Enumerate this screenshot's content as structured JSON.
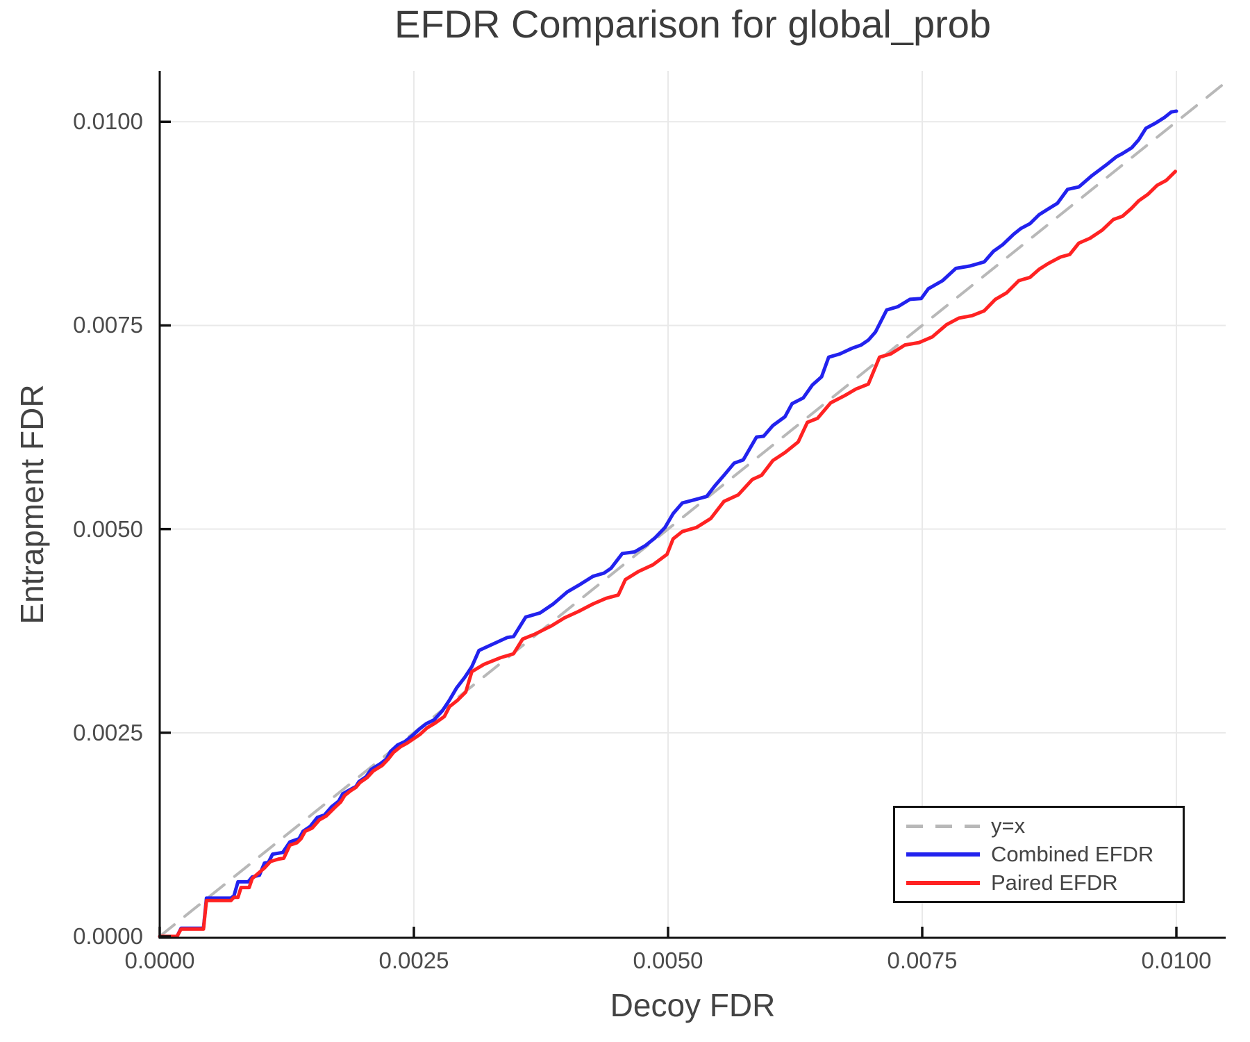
{
  "colors": {
    "background": "#ffffff",
    "grid": "#e9e9e9",
    "spine": "#111111",
    "tick_mark": "#111111",
    "title_text": "#3c3c3c",
    "axis_label_text": "#434343",
    "tick_label_text": "#4b4b4b",
    "legend_border": "#141414",
    "legend_text": "#444444",
    "identity_line": "#b8b8b8",
    "combined_line": "#2222ee",
    "paired_line": "#ff2222"
  },
  "chart_data": {
    "type": "line",
    "title": "EFDR Comparison for global_prob",
    "xlabel": "Decoy FDR",
    "ylabel": "Entrapment FDR",
    "xlim": [
      0,
      0.010485
    ],
    "ylim": [
      0,
      0.010625
    ],
    "grid": true,
    "legend_position": "lower right",
    "xticks": {
      "values": [
        0,
        0.0025,
        0.005,
        0.0075,
        0.01
      ],
      "labels": [
        "0.0000",
        "0.0025",
        "0.0050",
        "0.0075",
        "0.0100"
      ]
    },
    "yticks": {
      "values": [
        0,
        0.0025,
        0.005,
        0.0075,
        0.01
      ],
      "labels": [
        "0.0000",
        "0.0025",
        "0.0050",
        "0.0075",
        "0.0100"
      ]
    },
    "series": [
      {
        "name": "y=x",
        "style": "dashed",
        "color": "#b8b8b8",
        "width": 4,
        "points": [
          [
            0,
            0
          ],
          [
            0.010485,
            0.010485
          ]
        ]
      },
      {
        "name": "Combined EFDR",
        "style": "solid",
        "color": "#2222ee",
        "width": 5,
        "points": [
          [
            0,
            0
          ],
          [
            0.00017,
            0
          ],
          [
            0.00021,
            0.0001
          ],
          [
            0.00043,
            0.0001
          ],
          [
            0.00046,
            0.00047
          ],
          [
            0.0007,
            0.00047
          ],
          [
            0.00073,
            0.0005
          ],
          [
            0.00077,
            0.00067
          ],
          [
            0.00087,
            0.00067
          ],
          [
            0.00091,
            0.00073
          ],
          [
            0.00098,
            0.00075
          ],
          [
            0.00103,
            0.0009
          ],
          [
            0.00107,
            0.00091
          ],
          [
            0.00111,
            0.00101
          ],
          [
            0.00121,
            0.00103
          ],
          [
            0.00128,
            0.00116
          ],
          [
            0.00137,
            0.0012
          ],
          [
            0.00141,
            0.00129
          ],
          [
            0.00148,
            0.00135
          ],
          [
            0.00155,
            0.00146
          ],
          [
            0.00162,
            0.00149
          ],
          [
            0.00169,
            0.00159
          ],
          [
            0.00176,
            0.00166
          ],
          [
            0.0018,
            0.00175
          ],
          [
            0.00187,
            0.0018
          ],
          [
            0.00193,
            0.00184
          ],
          [
            0.00196,
            0.0019
          ],
          [
            0.00203,
            0.00196
          ],
          [
            0.00208,
            0.00205
          ],
          [
            0.00217,
            0.00212
          ],
          [
            0.00223,
            0.00218
          ],
          [
            0.00227,
            0.00227
          ],
          [
            0.00234,
            0.00235
          ],
          [
            0.00241,
            0.00239
          ],
          [
            0.00248,
            0.00246
          ],
          [
            0.00255,
            0.00254
          ],
          [
            0.00262,
            0.00261
          ],
          [
            0.0027,
            0.00266
          ],
          [
            0.00278,
            0.00277
          ],
          [
            0.00285,
            0.0029
          ],
          [
            0.00292,
            0.00305
          ],
          [
            0.003,
            0.00318
          ],
          [
            0.00307,
            0.00331
          ],
          [
            0.00314,
            0.00351
          ],
          [
            0.00328,
            0.00359
          ],
          [
            0.00342,
            0.00367
          ],
          [
            0.00348,
            0.00368
          ],
          [
            0.0036,
            0.00392
          ],
          [
            0.00374,
            0.00397
          ],
          [
            0.00387,
            0.00408
          ],
          [
            0.00401,
            0.00423
          ],
          [
            0.00412,
            0.00431
          ],
          [
            0.00426,
            0.00442
          ],
          [
            0.00437,
            0.00446
          ],
          [
            0.00444,
            0.00452
          ],
          [
            0.00455,
            0.0047
          ],
          [
            0.00467,
            0.00472
          ],
          [
            0.00478,
            0.0048
          ],
          [
            0.00487,
            0.00489
          ],
          [
            0.00497,
            0.00502
          ],
          [
            0.00505,
            0.00519
          ],
          [
            0.00514,
            0.00532
          ],
          [
            0.00526,
            0.00536
          ],
          [
            0.00538,
            0.0054
          ],
          [
            0.00546,
            0.00553
          ],
          [
            0.00555,
            0.00566
          ],
          [
            0.00565,
            0.00581
          ],
          [
            0.00574,
            0.00585
          ],
          [
            0.00587,
            0.00613
          ],
          [
            0.00594,
            0.00614
          ],
          [
            0.00603,
            0.00627
          ],
          [
            0.00615,
            0.00638
          ],
          [
            0.00622,
            0.00654
          ],
          [
            0.00633,
            0.00661
          ],
          [
            0.00642,
            0.00677
          ],
          [
            0.00651,
            0.00687
          ],
          [
            0.00658,
            0.00711
          ],
          [
            0.00669,
            0.00715
          ],
          [
            0.00681,
            0.00722
          ],
          [
            0.0069,
            0.00726
          ],
          [
            0.00697,
            0.00732
          ],
          [
            0.00704,
            0.00742
          ],
          [
            0.00715,
            0.00769
          ],
          [
            0.00726,
            0.00773
          ],
          [
            0.00738,
            0.00782
          ],
          [
            0.00749,
            0.00783
          ],
          [
            0.00756,
            0.00795
          ],
          [
            0.0077,
            0.00805
          ],
          [
            0.00783,
            0.0082
          ],
          [
            0.00797,
            0.00823
          ],
          [
            0.00811,
            0.00828
          ],
          [
            0.0082,
            0.00841
          ],
          [
            0.00829,
            0.00849
          ],
          [
            0.0084,
            0.00862
          ],
          [
            0.00847,
            0.00869
          ],
          [
            0.00856,
            0.00875
          ],
          [
            0.00865,
            0.00886
          ],
          [
            0.00874,
            0.00893
          ],
          [
            0.00883,
            0.009
          ],
          [
            0.00893,
            0.00917
          ],
          [
            0.00904,
            0.0092
          ],
          [
            0.00917,
            0.00934
          ],
          [
            0.00931,
            0.00947
          ],
          [
            0.00941,
            0.00957
          ],
          [
            0.00947,
            0.00961
          ],
          [
            0.00956,
            0.00968
          ],
          [
            0.00963,
            0.00978
          ],
          [
            0.0097,
            0.00992
          ],
          [
            0.00979,
            0.00998
          ],
          [
            0.00988,
            0.01005
          ],
          [
            0.00995,
            0.01012
          ],
          [
            0.01,
            0.01013
          ]
        ]
      },
      {
        "name": "Paired EFDR",
        "style": "solid",
        "color": "#ff2222",
        "width": 5,
        "points": [
          [
            0,
            0
          ],
          [
            0.00017,
            0
          ],
          [
            0.00021,
            9e-05
          ],
          [
            0.00043,
            9e-05
          ],
          [
            0.00046,
            0.00044
          ],
          [
            0.0007,
            0.00044
          ],
          [
            0.00073,
            0.00048
          ],
          [
            0.00077,
            0.00048
          ],
          [
            0.0008,
            0.0006
          ],
          [
            0.00088,
            0.0006
          ],
          [
            0.00091,
            0.00071
          ],
          [
            0.00103,
            0.00084
          ],
          [
            0.00109,
            0.00092
          ],
          [
            0.00117,
            0.00095
          ],
          [
            0.00122,
            0.00096
          ],
          [
            0.00128,
            0.00112
          ],
          [
            0.00135,
            0.00115
          ],
          [
            0.00139,
            0.0012
          ],
          [
            0.00143,
            0.00129
          ],
          [
            0.0015,
            0.00133
          ],
          [
            0.00157,
            0.00143
          ],
          [
            0.00164,
            0.00148
          ],
          [
            0.00172,
            0.00158
          ],
          [
            0.00178,
            0.00165
          ],
          [
            0.00182,
            0.00173
          ],
          [
            0.00188,
            0.00179
          ],
          [
            0.00193,
            0.00183
          ],
          [
            0.00197,
            0.00189
          ],
          [
            0.00204,
            0.00195
          ],
          [
            0.0021,
            0.00203
          ],
          [
            0.00219,
            0.0021
          ],
          [
            0.00225,
            0.00218
          ],
          [
            0.0023,
            0.00226
          ],
          [
            0.00237,
            0.00233
          ],
          [
            0.00243,
            0.00237
          ],
          [
            0.00249,
            0.00242
          ],
          [
            0.00256,
            0.00248
          ],
          [
            0.00263,
            0.00256
          ],
          [
            0.00271,
            0.00262
          ],
          [
            0.0028,
            0.0027
          ],
          [
            0.00285,
            0.00282
          ],
          [
            0.00293,
            0.0029
          ],
          [
            0.00301,
            0.003
          ],
          [
            0.00307,
            0.00325
          ],
          [
            0.00319,
            0.00334
          ],
          [
            0.00335,
            0.00342
          ],
          [
            0.00348,
            0.00347
          ],
          [
            0.00357,
            0.00365
          ],
          [
            0.00369,
            0.00371
          ],
          [
            0.00385,
            0.00381
          ],
          [
            0.00398,
            0.00391
          ],
          [
            0.00412,
            0.00399
          ],
          [
            0.00426,
            0.00408
          ],
          [
            0.00439,
            0.00415
          ],
          [
            0.00451,
            0.00419
          ],
          [
            0.00458,
            0.00438
          ],
          [
            0.00471,
            0.00448
          ],
          [
            0.00485,
            0.00456
          ],
          [
            0.00499,
            0.00469
          ],
          [
            0.00505,
            0.00488
          ],
          [
            0.00514,
            0.00497
          ],
          [
            0.00528,
            0.00502
          ],
          [
            0.00542,
            0.00513
          ],
          [
            0.00555,
            0.00534
          ],
          [
            0.00569,
            0.00542
          ],
          [
            0.00583,
            0.00561
          ],
          [
            0.00592,
            0.00566
          ],
          [
            0.00603,
            0.00584
          ],
          [
            0.00615,
            0.00594
          ],
          [
            0.00628,
            0.00607
          ],
          [
            0.00637,
            0.00631
          ],
          [
            0.00647,
            0.00636
          ],
          [
            0.0066,
            0.00655
          ],
          [
            0.00674,
            0.00664
          ],
          [
            0.00685,
            0.00672
          ],
          [
            0.00697,
            0.00678
          ],
          [
            0.00708,
            0.00711
          ],
          [
            0.00719,
            0.00715
          ],
          [
            0.00733,
            0.00726
          ],
          [
            0.00747,
            0.00729
          ],
          [
            0.0076,
            0.00736
          ],
          [
            0.00774,
            0.00751
          ],
          [
            0.00786,
            0.00759
          ],
          [
            0.00799,
            0.00762
          ],
          [
            0.00811,
            0.00768
          ],
          [
            0.00822,
            0.00782
          ],
          [
            0.00833,
            0.0079
          ],
          [
            0.00845,
            0.00805
          ],
          [
            0.00856,
            0.00809
          ],
          [
            0.00865,
            0.00819
          ],
          [
            0.00874,
            0.00826
          ],
          [
            0.00886,
            0.00834
          ],
          [
            0.00895,
            0.00837
          ],
          [
            0.00904,
            0.00851
          ],
          [
            0.00915,
            0.00857
          ],
          [
            0.00927,
            0.00867
          ],
          [
            0.00938,
            0.0088
          ],
          [
            0.00947,
            0.00884
          ],
          [
            0.00956,
            0.00894
          ],
          [
            0.00963,
            0.00903
          ],
          [
            0.00972,
            0.00911
          ],
          [
            0.00981,
            0.00922
          ],
          [
            0.0099,
            0.00928
          ],
          [
            0.00999,
            0.00939
          ]
        ]
      }
    ]
  }
}
